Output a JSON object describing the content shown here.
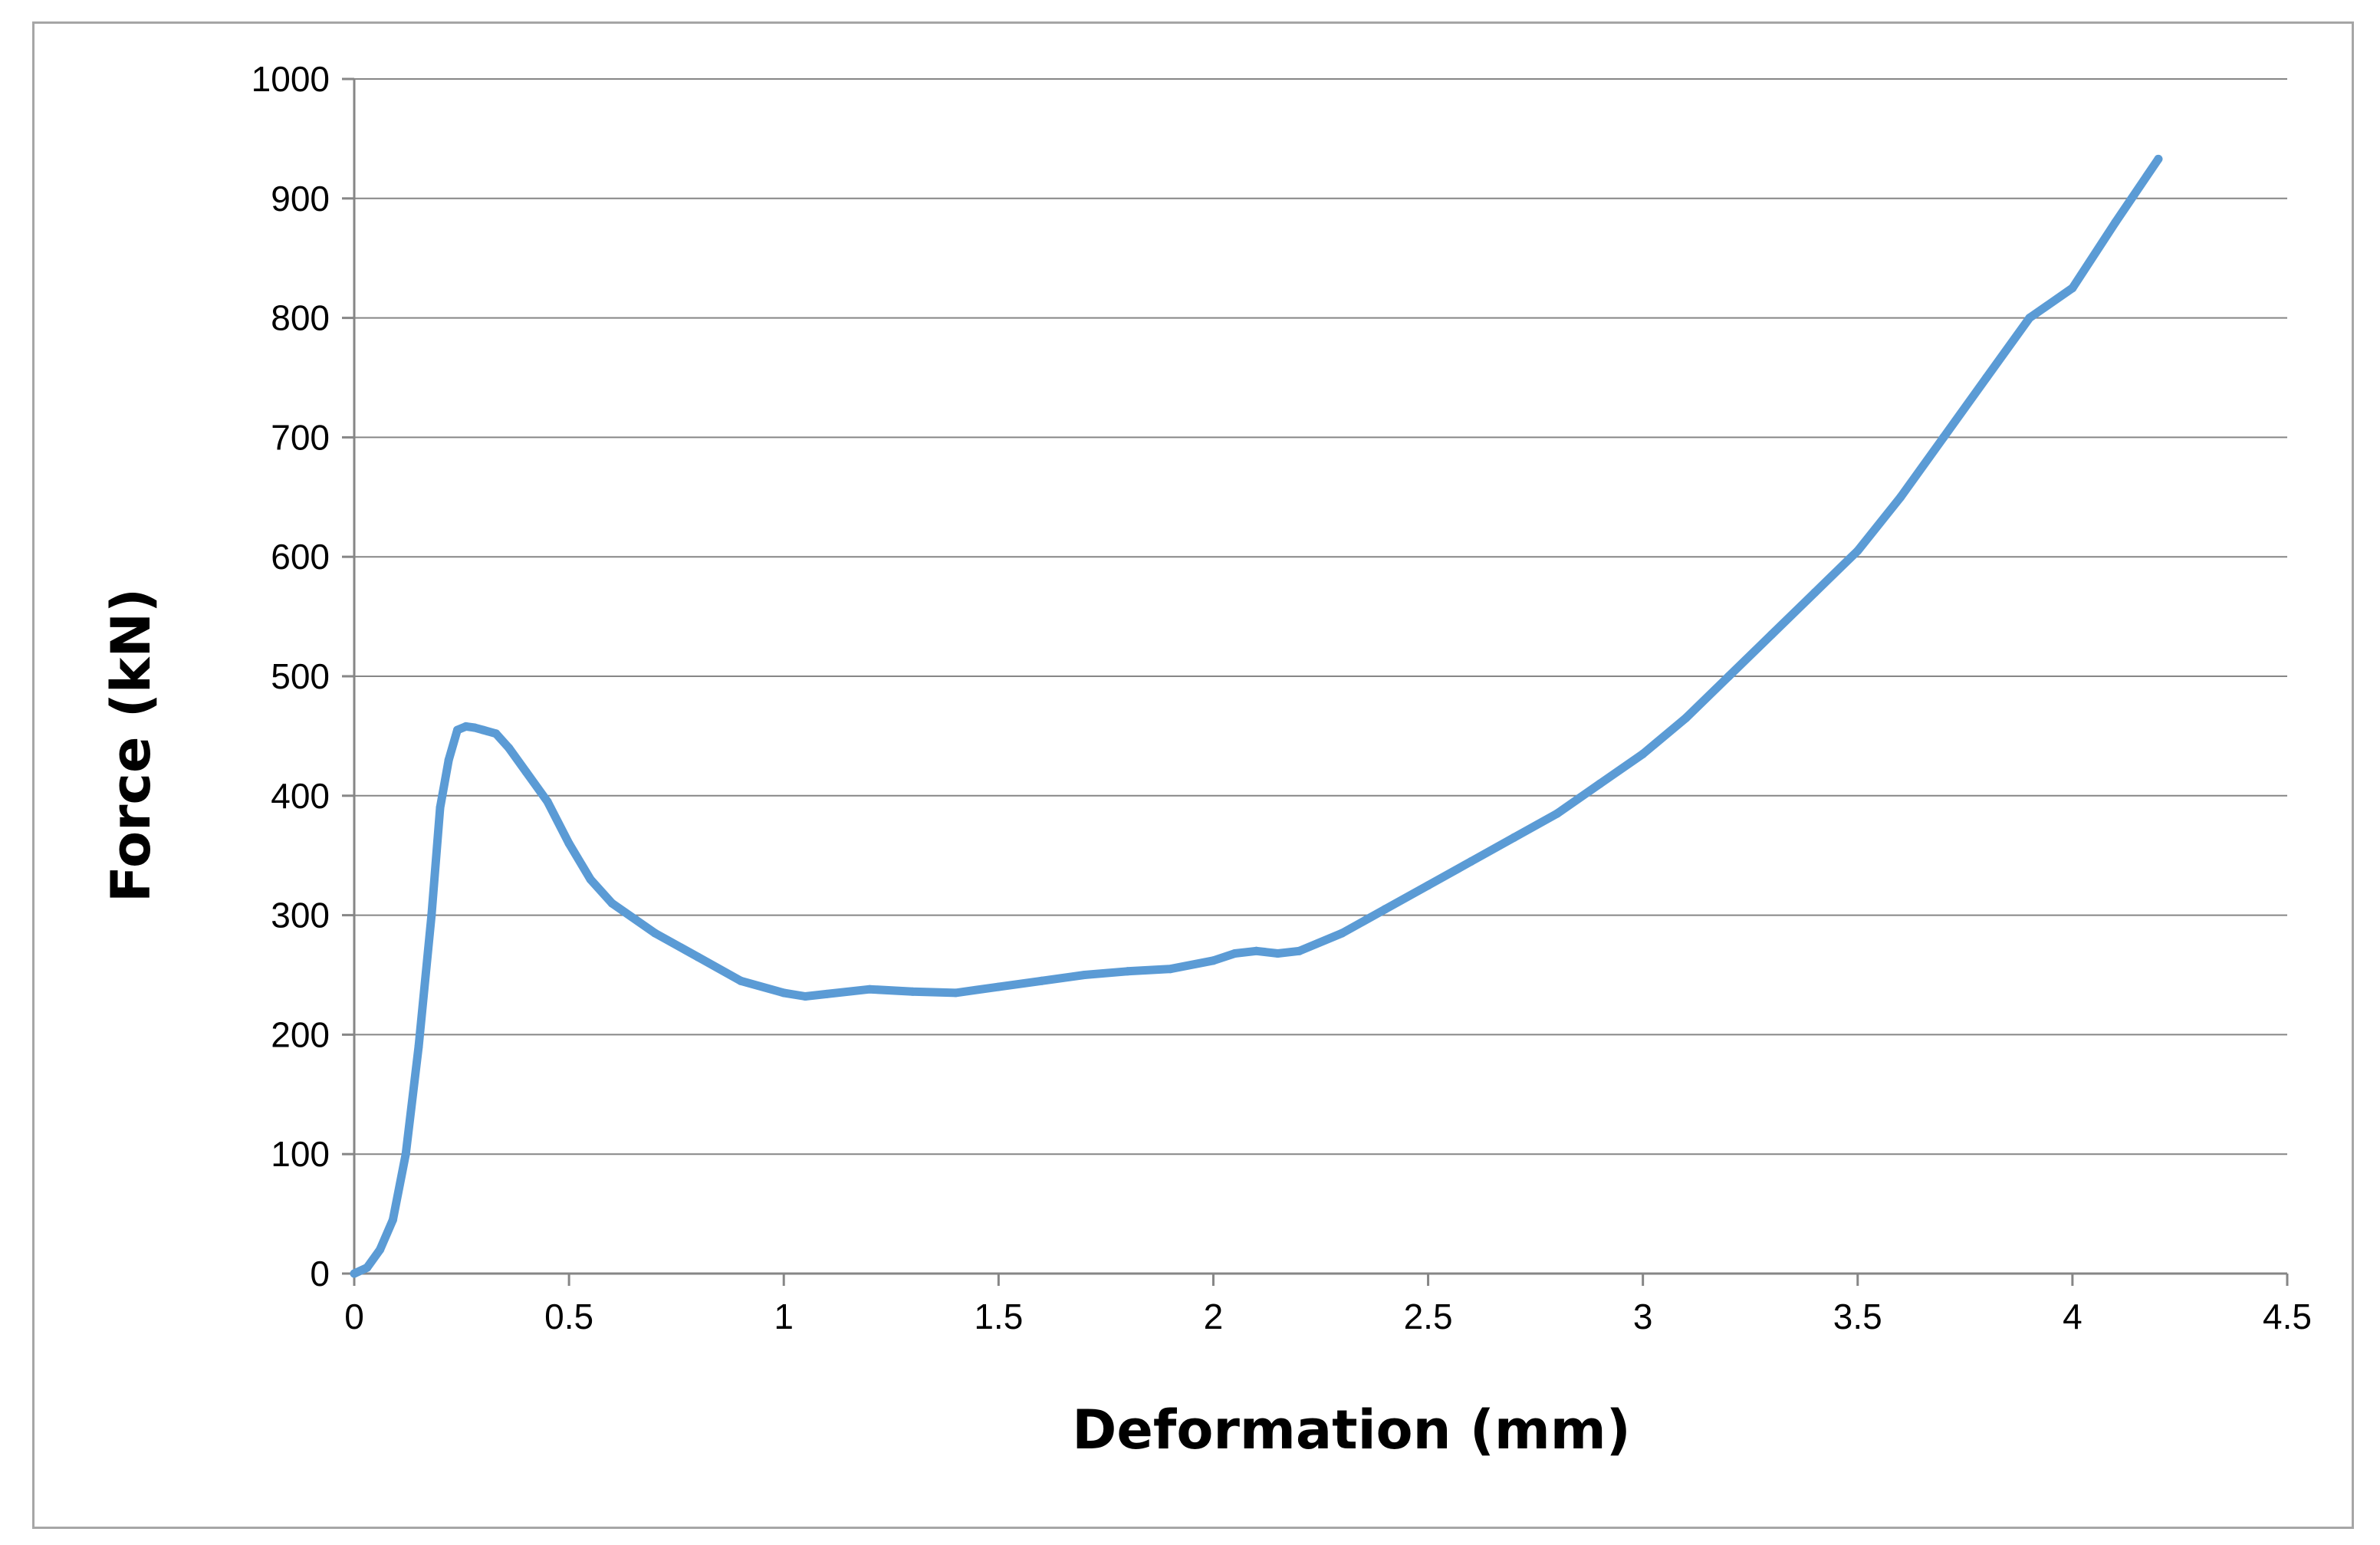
{
  "chart_data": {
    "type": "line",
    "title": "",
    "xlabel": "Deformation  (mm)",
    "ylabel": "Force  (kN)",
    "xlim": [
      0,
      4.5
    ],
    "ylim": [
      0,
      1000
    ],
    "x_ticks": [
      "0",
      "0.5",
      "1",
      "1.5",
      "2",
      "2.5",
      "3",
      "3.5",
      "4",
      "4.5"
    ],
    "y_ticks": [
      "0",
      "100",
      "200",
      "300",
      "400",
      "500",
      "600",
      "700",
      "800",
      "900",
      "1000"
    ],
    "grid": {
      "horizontal": true,
      "vertical": false
    },
    "legend": "none",
    "series": [
      {
        "color": "#5B9BD5",
        "x": [
          0,
          0.03,
          0.06,
          0.09,
          0.12,
          0.15,
          0.18,
          0.2,
          0.22,
          0.24,
          0.26,
          0.28,
          0.3,
          0.33,
          0.36,
          0.4,
          0.45,
          0.5,
          0.55,
          0.6,
          0.7,
          0.8,
          0.9,
          1.0,
          1.05,
          1.1,
          1.2,
          1.3,
          1.4,
          1.5,
          1.6,
          1.7,
          1.8,
          1.9,
          2.0,
          2.05,
          2.1,
          2.15,
          2.2,
          2.3,
          2.4,
          2.5,
          2.6,
          2.7,
          2.8,
          2.9,
          3.0,
          3.1,
          3.2,
          3.3,
          3.4,
          3.5,
          3.6,
          3.7,
          3.8,
          3.9,
          4.0,
          4.1,
          4.2
        ],
        "y": [
          0,
          5,
          20,
          45,
          100,
          190,
          300,
          390,
          430,
          455,
          458,
          457,
          455,
          452,
          440,
          420,
          395,
          360,
          330,
          310,
          285,
          265,
          245,
          235,
          232,
          234,
          238,
          236,
          235,
          240,
          245,
          250,
          253,
          255,
          262,
          268,
          270,
          268,
          270,
          285,
          305,
          325,
          345,
          365,
          385,
          410,
          435,
          465,
          500,
          535,
          570,
          605,
          650,
          700,
          750,
          800,
          825,
          880,
          933
        ]
      }
    ]
  }
}
